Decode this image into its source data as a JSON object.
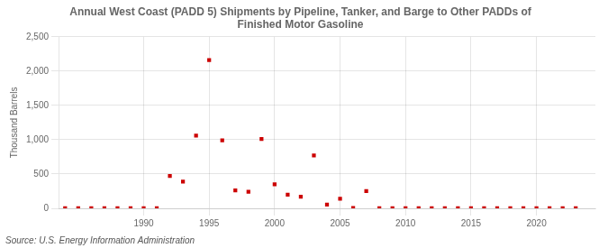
{
  "chart_data": {
    "type": "scatter",
    "title": "Annual West Coast (PADD 5) Shipments by Pipeline, Tanker, and Barge to Other PADDs of\nFinished Motor Gasoline",
    "ylabel": "Thousand Barrels",
    "annotation": "Source: U.S. Energy Information Administration",
    "color": "#cc0000",
    "marker": "square",
    "grid": true,
    "x": [
      1984,
      1985,
      1986,
      1987,
      1988,
      1989,
      1990,
      1991,
      1992,
      1993,
      1994,
      1995,
      1996,
      1997,
      1998,
      1999,
      2000,
      2001,
      2002,
      2003,
      2004,
      2005,
      2006,
      2007,
      2008,
      2009,
      2010,
      2011,
      2012,
      2013,
      2014,
      2015,
      2016,
      2017,
      2018,
      2019,
      2020,
      2021,
      2022,
      2023
    ],
    "values": [
      2,
      2,
      2,
      2,
      2,
      2,
      2,
      2,
      470,
      390,
      1060,
      2160,
      990,
      260,
      240,
      1010,
      350,
      200,
      170,
      770,
      55,
      140,
      5,
      250,
      2,
      2,
      2,
      2,
      2,
      2,
      2,
      2,
      2,
      2,
      2,
      2,
      2,
      2,
      2,
      2
    ],
    "xlim": [
      1983.5,
      2024.5
    ],
    "xticks": [
      1990,
      1995,
      2000,
      2005,
      2010,
      2015,
      2020
    ],
    "ylim": [
      0,
      2500
    ],
    "yticks": [
      0,
      500,
      {
        "value": 1000,
        "label": "1,000"
      },
      {
        "value": 1500,
        "label": "1,500"
      },
      {
        "value": 2000,
        "label": "2,000"
      },
      {
        "value": 2500,
        "label": "2,500"
      }
    ]
  }
}
